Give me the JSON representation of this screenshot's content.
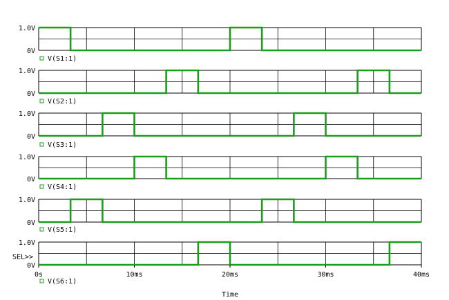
{
  "chart_data": {
    "type": "line",
    "plot_style": "digital timing diagram (PSpice probe)",
    "xlabel": "Time",
    "xunit": "ms",
    "xlim": [
      0,
      40
    ],
    "x_ticks": [
      0,
      10,
      20,
      30,
      40
    ],
    "x_tick_labels": [
      "0s",
      "10ms",
      "20ms",
      "30ms",
      "40ms"
    ],
    "y_tick_labels": [
      "0V",
      "1.0V"
    ],
    "ylim": [
      0,
      1
    ],
    "selection_marker": "SEL>>",
    "grid": true,
    "line_color": "#1a9e1a",
    "series": [
      {
        "name": "V(S1:1)",
        "x": [
          0,
          3.33,
          20,
          23.33,
          40
        ],
        "values": [
          1,
          0,
          1,
          0,
          0
        ]
      },
      {
        "name": "V(S2:1)",
        "x": [
          0,
          13.33,
          16.67,
          33.33,
          36.67,
          40
        ],
        "values": [
          0,
          1,
          0,
          1,
          0,
          0
        ]
      },
      {
        "name": "V(S3:1)",
        "x": [
          0,
          6.67,
          10,
          26.67,
          30,
          40
        ],
        "values": [
          0,
          1,
          0,
          1,
          0,
          0
        ]
      },
      {
        "name": "V(S4:1)",
        "x": [
          0,
          10,
          13.33,
          30,
          33.33,
          40
        ],
        "values": [
          0,
          1,
          0,
          1,
          0,
          0
        ]
      },
      {
        "name": "V(S5:1)",
        "x": [
          0,
          3.33,
          6.67,
          23.33,
          26.67,
          40
        ],
        "values": [
          0,
          1,
          0,
          1,
          0,
          0
        ]
      },
      {
        "name": "V(S6:1)",
        "x": [
          0,
          16.67,
          20,
          36.67,
          40
        ],
        "values": [
          0,
          1,
          0,
          1,
          1
        ]
      }
    ]
  }
}
